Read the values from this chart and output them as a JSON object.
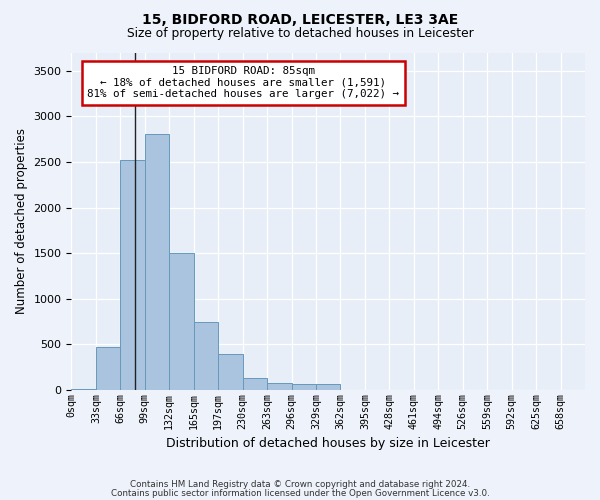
{
  "title_line1": "15, BIDFORD ROAD, LEICESTER, LE3 3AE",
  "title_line2": "Size of property relative to detached houses in Leicester",
  "xlabel": "Distribution of detached houses by size in Leicester",
  "ylabel": "Number of detached properties",
  "annotation_title": "15 BIDFORD ROAD: 85sqm",
  "annotation_line2": "← 18% of detached houses are smaller (1,591)",
  "annotation_line3": "81% of semi-detached houses are larger (7,022) →",
  "bar_color": "#aac4df",
  "bar_edge_color": "#6699bb",
  "background_color": "#e8eef8",
  "annotation_box_color": "#ffffff",
  "annotation_box_edge": "#cc0000",
  "bins": [
    "0sqm",
    "33sqm",
    "66sqm",
    "99sqm",
    "132sqm",
    "165sqm",
    "197sqm",
    "230sqm",
    "263sqm",
    "296sqm",
    "329sqm",
    "362sqm",
    "395sqm",
    "428sqm",
    "461sqm",
    "494sqm",
    "526sqm",
    "559sqm",
    "592sqm",
    "625sqm",
    "658sqm"
  ],
  "values": [
    5,
    470,
    2520,
    2810,
    1500,
    740,
    390,
    125,
    80,
    65,
    65,
    0,
    0,
    0,
    0,
    0,
    0,
    0,
    0,
    0,
    0
  ],
  "ylim": [
    0,
    3700
  ],
  "yticks": [
    0,
    500,
    1000,
    1500,
    2000,
    2500,
    3000,
    3500
  ],
  "footer_line1": "Contains HM Land Registry data © Crown copyright and database right 2024.",
  "footer_line2": "Contains public sector information licensed under the Open Government Licence v3.0.",
  "vline_x": 2.58,
  "fig_bg_color": "#eef2fa"
}
